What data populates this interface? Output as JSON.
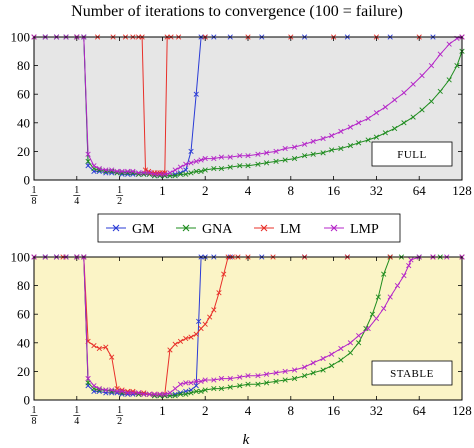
{
  "chart_data": {
    "type": "line",
    "title": "Number of iterations to convergence (100 = failure)",
    "xlabel": "k",
    "x_scale": "log2",
    "xlim": [
      0.125,
      128
    ],
    "ylim": [
      0,
      100
    ],
    "y_ticks": [
      "0",
      "20",
      "40",
      "60",
      "80",
      "100"
    ],
    "x_ticks": [
      {
        "value": 0.125,
        "num": "1",
        "den": "8"
      },
      {
        "value": 0.25,
        "num": "1",
        "den": "4"
      },
      {
        "value": 0.5,
        "num": "1",
        "den": "2"
      },
      {
        "value": 1,
        "label": "1"
      },
      {
        "value": 2,
        "label": "2"
      },
      {
        "value": 4,
        "label": "4"
      },
      {
        "value": 8,
        "label": "8"
      },
      {
        "value": 16,
        "label": "16"
      },
      {
        "value": 32,
        "label": "32"
      },
      {
        "value": 64,
        "label": "64"
      },
      {
        "value": 128,
        "label": "128"
      }
    ],
    "legend": {
      "placement": "between panels",
      "entries": [
        {
          "name": "GM",
          "color": "#2a3bd6"
        },
        {
          "name": "GNA",
          "color": "#1e8c1e"
        },
        {
          "name": "LM",
          "color": "#e8302a"
        },
        {
          "name": "LMP",
          "color": "#b424c8"
        }
      ]
    },
    "panels": [
      {
        "label": "FULL",
        "background": "#e6e6e6",
        "series": [
          {
            "name": "GM",
            "color": "#2a3bd6",
            "x": [
              0.125,
              0.15,
              0.18,
              0.21,
              0.25,
              0.28,
              0.3,
              0.33,
              0.36,
              0.4,
              0.44,
              0.48,
              0.52,
              0.57,
              0.62,
              0.68,
              0.74,
              0.81,
              0.88,
              0.96,
              1.04,
              1.13,
              1.23,
              1.34,
              1.46,
              1.59,
              1.73,
              1.87,
              2.0,
              2.3,
              3,
              5,
              10,
              20,
              40,
              80,
              128
            ],
            "y": [
              100,
              100,
              100,
              100,
              100,
              100,
              10,
              6,
              6,
              5,
              5,
              5,
              4,
              4,
              4,
              4,
              4,
              4,
              3,
              3,
              3,
              3,
              4,
              5,
              7,
              20,
              60,
              100,
              100,
              100,
              100,
              100,
              100,
              100,
              100,
              100,
              100
            ]
          },
          {
            "name": "GNA",
            "color": "#1e8c1e",
            "x": [
              0.125,
              0.15,
              0.18,
              0.21,
              0.25,
              0.28,
              0.3,
              0.33,
              0.36,
              0.4,
              0.44,
              0.48,
              0.52,
              0.57,
              0.62,
              0.68,
              0.74,
              0.81,
              0.88,
              0.96,
              1.04,
              1.13,
              1.23,
              1.34,
              1.46,
              1.59,
              1.73,
              1.87,
              2.0,
              2.3,
              2.6,
              3.0,
              3.5,
              4.0,
              4.7,
              5.4,
              6.3,
              7.3,
              8.5,
              10,
              11.5,
              13.5,
              15.5,
              18,
              21,
              24,
              28,
              32,
              37,
              43,
              50,
              58,
              67,
              78,
              90,
              104,
              118,
              128
            ],
            "y": [
              100,
              100,
              100,
              100,
              100,
              100,
              13,
              8,
              7,
              6,
              6,
              5,
              5,
              5,
              5,
              4,
              4,
              4,
              3,
              3,
              3,
              3,
              3,
              4,
              4,
              5,
              6,
              6,
              7,
              8,
              8,
              9,
              10,
              10,
              11,
              12,
              13,
              14,
              15,
              17,
              18,
              19,
              21,
              22,
              24,
              26,
              28,
              30,
              33,
              36,
              40,
              44,
              49,
              55,
              62,
              70,
              80,
              90
            ]
          },
          {
            "name": "LM",
            "color": "#e8302a",
            "x": [
              0.125,
              0.25,
              0.35,
              0.45,
              0.55,
              0.62,
              0.68,
              0.72,
              0.76,
              0.8,
              0.84,
              0.88,
              0.92,
              0.96,
              1.0,
              1.04,
              1.08,
              1.15,
              1.3,
              2,
              4,
              8,
              16,
              32,
              64,
              128
            ],
            "y": [
              100,
              100,
              100,
              100,
              100,
              100,
              100,
              100,
              7,
              6,
              5,
              5,
              5,
              5,
              5,
              5,
              100,
              100,
              100,
              100,
              100,
              100,
              100,
              100,
              100,
              100
            ]
          },
          {
            "name": "LMP",
            "color": "#b424c8",
            "x": [
              0.125,
              0.15,
              0.18,
              0.21,
              0.25,
              0.28,
              0.3,
              0.33,
              0.36,
              0.4,
              0.44,
              0.48,
              0.52,
              0.57,
              0.62,
              0.68,
              0.74,
              0.81,
              0.88,
              0.96,
              1.04,
              1.13,
              1.23,
              1.34,
              1.46,
              1.59,
              1.73,
              1.87,
              2.0,
              2.3,
              2.6,
              3.0,
              3.5,
              4.0,
              4.7,
              5.4,
              6.3,
              7.3,
              8.5,
              10,
              11.5,
              13.5,
              15.5,
              18,
              21,
              24,
              28,
              32,
              37,
              43,
              50,
              58,
              67,
              78,
              90,
              104,
              118,
              128
            ],
            "y": [
              100,
              100,
              100,
              100,
              100,
              100,
              18,
              10,
              8,
              7,
              7,
              6,
              6,
              6,
              6,
              5,
              5,
              5,
              4,
              4,
              4,
              5,
              7,
              9,
              11,
              12,
              13,
              14,
              15,
              15,
              16,
              16,
              17,
              17,
              18,
              19,
              20,
              22,
              23,
              25,
              27,
              29,
              31,
              34,
              37,
              40,
              43,
              47,
              51,
              56,
              61,
              67,
              73,
              80,
              88,
              95,
              99,
              100
            ]
          }
        ]
      },
      {
        "label": "STABLE",
        "background": "#fbf4c6",
        "series": [
          {
            "name": "GM",
            "color": "#2a3bd6",
            "x": [
              0.125,
              0.15,
              0.18,
              0.21,
              0.25,
              0.28,
              0.3,
              0.33,
              0.36,
              0.4,
              0.44,
              0.48,
              0.52,
              0.57,
              0.62,
              0.68,
              0.74,
              0.81,
              0.88,
              0.96,
              1.04,
              1.13,
              1.23,
              1.34,
              1.46,
              1.59,
              1.73,
              1.8,
              1.87,
              2.0,
              2.3,
              3,
              5,
              10,
              20,
              40,
              80,
              128
            ],
            "y": [
              100,
              100,
              100,
              100,
              100,
              100,
              10,
              6,
              6,
              5,
              5,
              5,
              4,
              4,
              4,
              4,
              4,
              4,
              3,
              3,
              3,
              3,
              4,
              5,
              6,
              7,
              10,
              55,
              100,
              100,
              100,
              100,
              100,
              100,
              100,
              100,
              100,
              100
            ]
          },
          {
            "name": "GNA",
            "color": "#1e8c1e",
            "x": [
              0.125,
              0.15,
              0.18,
              0.21,
              0.25,
              0.28,
              0.3,
              0.33,
              0.36,
              0.4,
              0.44,
              0.48,
              0.52,
              0.57,
              0.62,
              0.68,
              0.74,
              0.81,
              0.88,
              0.96,
              1.04,
              1.13,
              1.23,
              1.34,
              1.46,
              1.59,
              1.73,
              1.87,
              2.0,
              2.3,
              2.6,
              3.0,
              3.5,
              4.0,
              4.7,
              5.4,
              6.3,
              7.3,
              8.5,
              10,
              11.5,
              13.5,
              15.5,
              18,
              21,
              24,
              27,
              30,
              33,
              36,
              40,
              48,
              64,
              90,
              128
            ],
            "y": [
              100,
              100,
              100,
              100,
              100,
              100,
              12,
              8,
              7,
              7,
              6,
              6,
              5,
              5,
              5,
              4,
              4,
              4,
              3,
              3,
              3,
              3,
              3,
              4,
              4,
              5,
              6,
              6,
              7,
              8,
              8,
              9,
              10,
              11,
              11,
              12,
              13,
              14,
              15,
              17,
              19,
              21,
              24,
              28,
              33,
              40,
              50,
              60,
              72,
              88,
              100,
              100,
              100,
              100,
              100
            ]
          },
          {
            "name": "LM",
            "color": "#e8302a",
            "x": [
              0.125,
              0.2,
              0.25,
              0.28,
              0.3,
              0.33,
              0.36,
              0.4,
              0.44,
              0.48,
              0.52,
              0.57,
              0.62,
              0.68,
              0.74,
              0.81,
              0.88,
              0.96,
              1.04,
              1.13,
              1.23,
              1.34,
              1.46,
              1.59,
              1.73,
              1.87,
              2.0,
              2.15,
              2.3,
              2.5,
              2.7,
              2.9,
              3.1,
              3.4,
              4,
              6,
              10,
              20,
              40,
              80,
              128
            ],
            "y": [
              100,
              100,
              100,
              100,
              41,
              38,
              36,
              37,
              30,
              8,
              7,
              6,
              6,
              5,
              5,
              4,
              4,
              4,
              4,
              35,
              39,
              41,
              43,
              44,
              46,
              50,
              53,
              58,
              63,
              75,
              88,
              100,
              100,
              100,
              100,
              100,
              100,
              100,
              100,
              100,
              100
            ]
          },
          {
            "name": "LMP",
            "color": "#b424c8",
            "x": [
              0.125,
              0.15,
              0.18,
              0.21,
              0.25,
              0.28,
              0.3,
              0.33,
              0.36,
              0.4,
              0.44,
              0.48,
              0.52,
              0.57,
              0.62,
              0.68,
              0.74,
              0.81,
              0.88,
              0.96,
              1.04,
              1.13,
              1.23,
              1.34,
              1.46,
              1.59,
              1.73,
              1.87,
              2.0,
              2.3,
              2.6,
              3.0,
              3.5,
              4.0,
              4.7,
              5.4,
              6.3,
              7.3,
              8.5,
              10,
              11.5,
              13.5,
              15.5,
              18,
              21,
              24,
              28,
              32,
              36,
              40,
              45,
              50,
              54,
              56,
              64,
              80,
              100,
              128
            ],
            "y": [
              100,
              100,
              100,
              100,
              100,
              100,
              15,
              10,
              8,
              7,
              7,
              6,
              6,
              5,
              5,
              5,
              4,
              4,
              4,
              4,
              4,
              5,
              8,
              11,
              12,
              12,
              13,
              13,
              14,
              14,
              15,
              15,
              16,
              17,
              17,
              18,
              19,
              20,
              21,
              23,
              26,
              29,
              32,
              36,
              40,
              45,
              50,
              57,
              64,
              72,
              80,
              87,
              94,
              98,
              100,
              100,
              100,
              100
            ]
          }
        ]
      }
    ]
  }
}
